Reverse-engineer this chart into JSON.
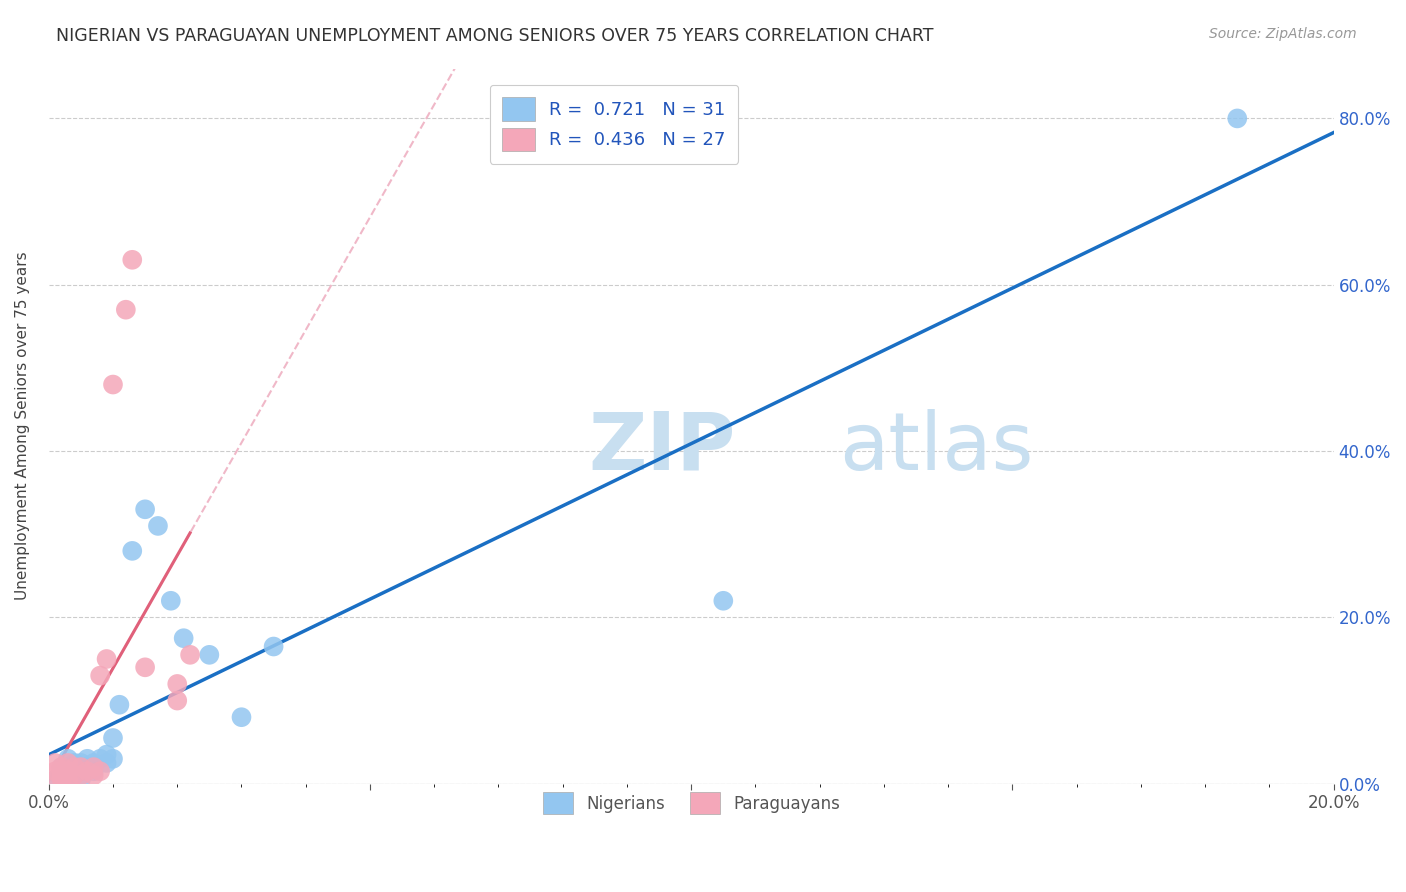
{
  "title": "NIGERIAN VS PARAGUAYAN UNEMPLOYMENT AMONG SENIORS OVER 75 YEARS CORRELATION CHART",
  "source": "Source: ZipAtlas.com",
  "ylabel": "Unemployment Among Seniors over 75 years",
  "xlim": [
    0.0,
    0.2
  ],
  "ylim": [
    0.0,
    0.86
  ],
  "legend_r1": "R =  0.721   N = 31",
  "legend_r2": "R =  0.436   N = 27",
  "legend_label1": "Nigerians",
  "legend_label2": "Paraguayans",
  "nigerians_color": "#93c6f0",
  "paraguayans_color": "#f4a7b9",
  "nigerians_line_color": "#1a6fc4",
  "paraguayans_solid_color": "#e0607a",
  "paraguayans_dash_color": "#f0b8c8",
  "watermark_zip": "ZIP",
  "watermark_atlas": "atlas",
  "watermark_color": "#c8dff0",
  "background_color": "#ffffff",
  "nigerians_x": [
    0.001,
    0.002,
    0.002,
    0.003,
    0.003,
    0.003,
    0.004,
    0.004,
    0.005,
    0.005,
    0.005,
    0.006,
    0.006,
    0.007,
    0.007,
    0.008,
    0.009,
    0.009,
    0.01,
    0.01,
    0.011,
    0.013,
    0.015,
    0.017,
    0.019,
    0.021,
    0.025,
    0.03,
    0.035,
    0.105,
    0.185
  ],
  "nigerians_y": [
    0.005,
    0.01,
    0.02,
    0.01,
    0.02,
    0.03,
    0.01,
    0.025,
    0.005,
    0.015,
    0.025,
    0.02,
    0.03,
    0.015,
    0.025,
    0.03,
    0.025,
    0.035,
    0.03,
    0.055,
    0.095,
    0.28,
    0.33,
    0.31,
    0.22,
    0.175,
    0.155,
    0.08,
    0.165,
    0.22,
    0.8
  ],
  "paraguayans_x": [
    0.001,
    0.001,
    0.001,
    0.002,
    0.002,
    0.002,
    0.002,
    0.003,
    0.003,
    0.003,
    0.004,
    0.004,
    0.005,
    0.005,
    0.006,
    0.007,
    0.007,
    0.008,
    0.008,
    0.009,
    0.01,
    0.012,
    0.013,
    0.015,
    0.02,
    0.02,
    0.022
  ],
  "paraguayans_y": [
    0.005,
    0.015,
    0.025,
    0.005,
    0.01,
    0.015,
    0.02,
    0.005,
    0.015,
    0.025,
    0.01,
    0.02,
    0.01,
    0.02,
    0.015,
    0.01,
    0.02,
    0.015,
    0.13,
    0.15,
    0.48,
    0.57,
    0.63,
    0.14,
    0.1,
    0.12,
    0.155
  ]
}
